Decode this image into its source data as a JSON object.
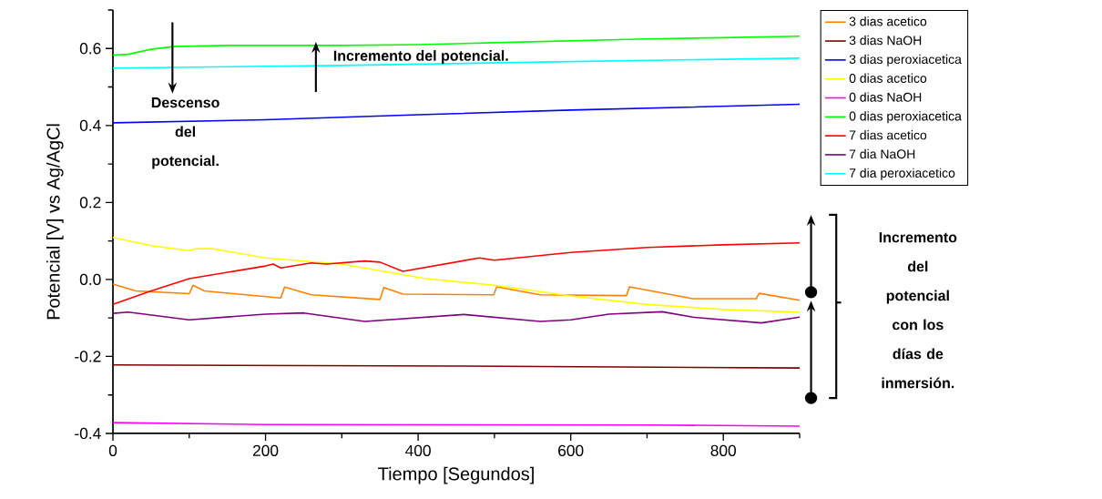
{
  "chart_data": {
    "type": "line",
    "xlabel": "Tiempo [Segundos]",
    "ylabel": "Potencial [V] vs Ag/AgCl",
    "xlim": [
      0,
      900
    ],
    "ylim": [
      -0.4,
      0.7
    ],
    "xticks": [
      0,
      {
        "value": 100,
        "label": null
      },
      200,
      {
        "value": 300,
        "label": null
      },
      400,
      {
        "value": 500,
        "label": null
      },
      600,
      {
        "value": 700,
        "label": null
      },
      800,
      {
        "value": 900,
        "label": null
      }
    ],
    "yticks": [
      -0.4,
      {
        "value": -0.3,
        "label": null
      },
      -0.2,
      {
        "value": -0.1,
        "label": null
      },
      {
        "value": 0,
        "label": "0.0"
      },
      {
        "value": 0.1,
        "label": null
      },
      0.2,
      {
        "value": 0.3,
        "label": null
      },
      0.4,
      {
        "value": 0.5,
        "label": null
      },
      0.6,
      {
        "value": 0.7,
        "label": null
      }
    ],
    "grid": false,
    "legend": "top right",
    "marker": "none",
    "line_style": "solid",
    "series": [
      {
        "name": "3 dias acetico",
        "color": "#ff8000",
        "x": [
          0,
          30,
          100,
          105,
          120,
          220,
          225,
          260,
          350,
          355,
          380,
          499,
          503,
          560,
          673,
          677,
          760,
          843,
          847,
          900
        ],
        "values": [
          -0.012,
          -0.03,
          -0.037,
          -0.015,
          -0.03,
          -0.048,
          -0.02,
          -0.04,
          -0.052,
          -0.021,
          -0.038,
          -0.04,
          -0.019,
          -0.04,
          -0.042,
          -0.019,
          -0.05,
          -0.05,
          -0.036,
          -0.054
        ]
      },
      {
        "name": "3 dias NaOH",
        "color": "#800000",
        "x": [
          0,
          450,
          900
        ],
        "values": [
          -0.222,
          -0.225,
          -0.23
        ]
      },
      {
        "name": "3 dias peroxiacetica",
        "color": "#0000ff",
        "x": [
          0,
          200,
          400,
          600,
          900
        ],
        "values": [
          0.407,
          0.415,
          0.428,
          0.44,
          0.455
        ]
      },
      {
        "name": "0 dias acetico",
        "color": "#ffff00",
        "x": [
          0,
          50,
          100,
          110,
          130,
          200,
          300,
          410,
          500,
          600,
          700,
          800,
          900
        ],
        "values": [
          0.109,
          0.088,
          0.075,
          0.08,
          0.08,
          0.056,
          0.04,
          0.002,
          -0.015,
          -0.043,
          -0.065,
          -0.078,
          -0.085
        ]
      },
      {
        "name": "0 dias NaOH",
        "color": "#ff00ff",
        "x": [
          0,
          200,
          700,
          900
        ],
        "values": [
          -0.372,
          -0.377,
          -0.378,
          -0.381
        ]
      },
      {
        "name": "0 dias peroxiacetica",
        "color": "#00ff00",
        "x": [
          0,
          20,
          50,
          80,
          150,
          300,
          400,
          500,
          600,
          700,
          800,
          900
        ],
        "values": [
          0.583,
          0.585,
          0.598,
          0.605,
          0.608,
          0.608,
          0.61,
          0.615,
          0.62,
          0.625,
          0.628,
          0.632
        ]
      },
      {
        "name": "7 dias acetico",
        "color": "#ff0000",
        "x": [
          0,
          50,
          100,
          200,
          210,
          220,
          260,
          280,
          330,
          350,
          380,
          480,
          500,
          600,
          700,
          800,
          900
        ],
        "values": [
          -0.065,
          -0.03,
          0.002,
          0.035,
          0.04,
          0.03,
          0.043,
          0.04,
          0.048,
          0.045,
          0.021,
          0.056,
          0.05,
          0.07,
          0.083,
          0.09,
          0.095
        ]
      },
      {
        "name": "7 dia NaOH",
        "color": "#800080",
        "x": [
          0,
          20,
          100,
          200,
          250,
          330,
          460,
          560,
          600,
          650,
          720,
          760,
          850,
          900
        ],
        "values": [
          -0.088,
          -0.085,
          -0.105,
          -0.09,
          -0.087,
          -0.109,
          -0.091,
          -0.109,
          -0.105,
          -0.09,
          -0.084,
          -0.098,
          -0.113,
          -0.098
        ]
      },
      {
        "name": "7 dia peroxiacetico",
        "color": "#00ffff",
        "x": [
          0,
          300,
          600,
          900
        ],
        "values": [
          0.549,
          0.556,
          0.566,
          0.575
        ]
      }
    ],
    "annotations": [
      "**Descenso del potencial.**",
      "**Incremento del potencial.**",
      "**Incremento del potencial con los días de inmersión.**"
    ]
  }
}
